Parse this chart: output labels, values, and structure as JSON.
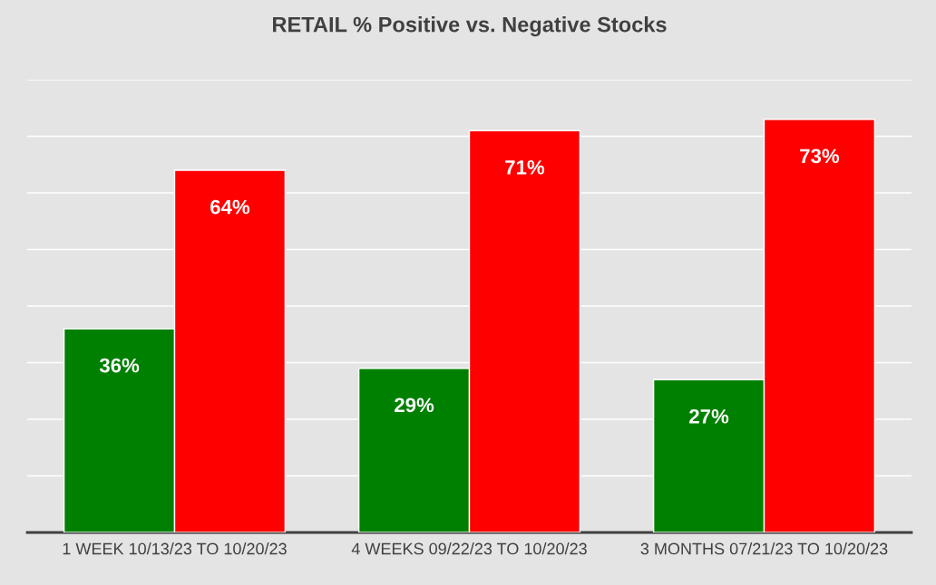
{
  "chart_data": {
    "type": "bar",
    "title": "RETAIL % Positive vs. Negative Stocks",
    "categories": [
      "1 WEEK 10/13/23 TO 10/20/23",
      "4 WEEKS 09/22/23 TO 10/20/23",
      "3 MONTHS 07/21/23 TO 10/20/23"
    ],
    "series": [
      {
        "color": "#008000",
        "values": [
          36,
          29,
          27
        ],
        "value_labels": [
          "36%",
          "29%",
          "27%"
        ]
      },
      {
        "color": "#ff0000",
        "values": [
          64,
          71,
          73
        ],
        "value_labels": [
          "64%",
          "71%",
          "73%"
        ]
      }
    ],
    "ylim": [
      0,
      80
    ],
    "yticks": [
      {
        "value": 10,
        "label": null
      },
      {
        "value": 20,
        "label": null
      },
      {
        "value": 30,
        "label": null
      },
      {
        "value": 40,
        "label": null
      },
      {
        "value": 50,
        "label": null
      },
      {
        "value": 60,
        "label": null
      },
      {
        "value": 70,
        "label": null
      },
      {
        "value": 80,
        "label": null
      }
    ],
    "grid": "y",
    "tick_labels": "x",
    "legend": false
  }
}
